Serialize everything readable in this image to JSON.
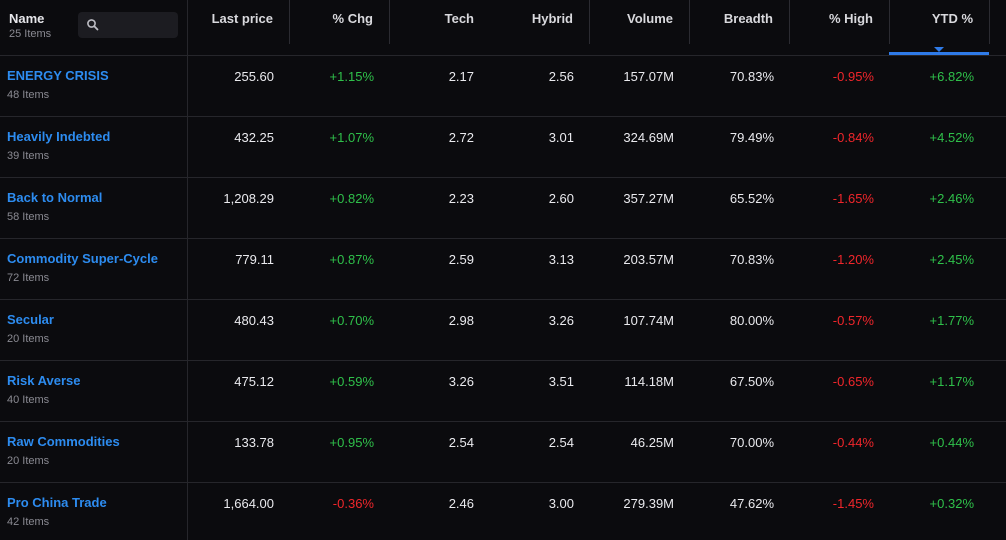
{
  "header": {
    "name_label": "Name",
    "count_label": "25 Items",
    "search_placeholder": "",
    "columns": [
      "Last price",
      "% Chg",
      "Tech",
      "Hybrid",
      "Volume",
      "Breadth",
      "% High",
      "YTD %"
    ],
    "sorted_column": "YTD %",
    "accent_color": "#2f7be8"
  },
  "colors": {
    "link": "#2d8cf0",
    "positive": "#2fc04a",
    "negative": "#f0262b"
  },
  "rows": [
    {
      "name": "ENERGY CRISIS",
      "items": "48 Items",
      "last_price": "255.60",
      "chg": "+1.15%",
      "tech": "2.17",
      "hybrid": "2.56",
      "volume": "157.07M",
      "breadth": "70.83%",
      "high": "-0.95%",
      "ytd": "+6.82%"
    },
    {
      "name": "Heavily Indebted",
      "items": "39 Items",
      "last_price": "432.25",
      "chg": "+1.07%",
      "tech": "2.72",
      "hybrid": "3.01",
      "volume": "324.69M",
      "breadth": "79.49%",
      "high": "-0.84%",
      "ytd": "+4.52%"
    },
    {
      "name": "Back to Normal",
      "items": "58 Items",
      "last_price": "1,208.29",
      "chg": "+0.82%",
      "tech": "2.23",
      "hybrid": "2.60",
      "volume": "357.27M",
      "breadth": "65.52%",
      "high": "-1.65%",
      "ytd": "+2.46%"
    },
    {
      "name": "Commodity Super-Cycle",
      "items": "72 Items",
      "last_price": "779.11",
      "chg": "+0.87%",
      "tech": "2.59",
      "hybrid": "3.13",
      "volume": "203.57M",
      "breadth": "70.83%",
      "high": "-1.20%",
      "ytd": "+2.45%"
    },
    {
      "name": "Secular",
      "items": "20 Items",
      "last_price": "480.43",
      "chg": "+0.70%",
      "tech": "2.98",
      "hybrid": "3.26",
      "volume": "107.74M",
      "breadth": "80.00%",
      "high": "-0.57%",
      "ytd": "+1.77%"
    },
    {
      "name": "Risk Averse",
      "items": "40 Items",
      "last_price": "475.12",
      "chg": "+0.59%",
      "tech": "3.26",
      "hybrid": "3.51",
      "volume": "114.18M",
      "breadth": "67.50%",
      "high": "-0.65%",
      "ytd": "+1.17%"
    },
    {
      "name": "Raw Commodities",
      "items": "20 Items",
      "last_price": "133.78",
      "chg": "+0.95%",
      "tech": "2.54",
      "hybrid": "2.54",
      "volume": "46.25M",
      "breadth": "70.00%",
      "high": "-0.44%",
      "ytd": "+0.44%"
    },
    {
      "name": "Pro China Trade",
      "items": "42 Items",
      "last_price": "1,664.00",
      "chg": "-0.36%",
      "tech": "2.46",
      "hybrid": "3.00",
      "volume": "279.39M",
      "breadth": "47.62%",
      "high": "-1.45%",
      "ytd": "+0.32%"
    }
  ]
}
